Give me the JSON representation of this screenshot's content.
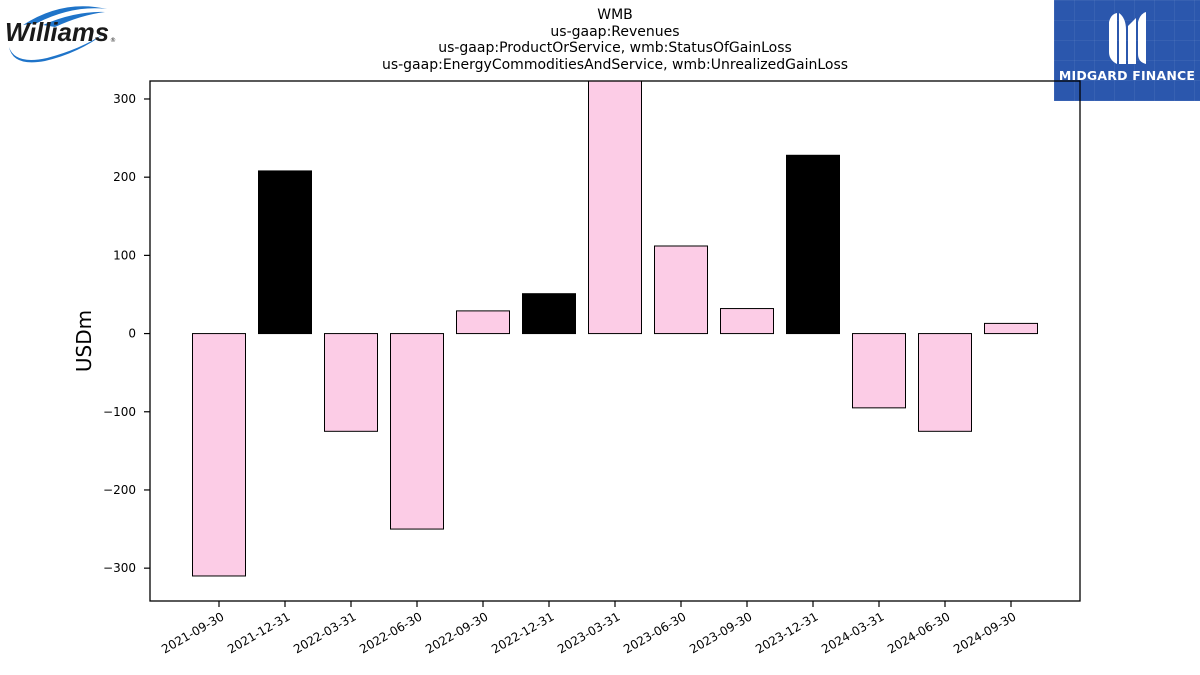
{
  "header": {
    "title_lines": [
      "WMB",
      "us-gaap:Revenues",
      "us-gaap:ProductOrService, wmb:StatusOfGainLoss",
      "us-gaap:EnergyCommoditiesAndService, wmb:UnrealizedGainLoss"
    ]
  },
  "logos": {
    "left": {
      "text": "Williams"
    },
    "right": {
      "text": "MIDGARD FINANCE"
    }
  },
  "colors": {
    "positive_bar": "#000000",
    "default_bar": "#fccce6",
    "bar_edge": "#000000",
    "right_logo_bg": "#2b57ad"
  },
  "chart_data": {
    "type": "bar",
    "categories": [
      "2021-09-30",
      "2021-12-31",
      "2022-03-31",
      "2022-06-30",
      "2022-09-30",
      "2022-12-31",
      "2023-03-31",
      "2023-06-30",
      "2023-09-30",
      "2023-12-31",
      "2024-03-31",
      "2024-06-30",
      "2024-09-30"
    ],
    "values": [
      -310,
      208,
      -125,
      -250,
      29,
      51,
      330,
      112,
      32,
      228,
      -95,
      -125,
      13
    ],
    "bar_colors": [
      "#fccce6",
      "#000000",
      "#fccce6",
      "#fccce6",
      "#fccce6",
      "#000000",
      "#fccce6",
      "#fccce6",
      "#fccce6",
      "#000000",
      "#fccce6",
      "#fccce6",
      "#fccce6"
    ],
    "xlabel": "",
    "ylabel": "USDm",
    "ylim": [
      -342,
      323
    ],
    "yticks": [
      300,
      200,
      100,
      0,
      -100,
      -200,
      -300
    ],
    "ytick_labels": [
      "300",
      "200",
      "100",
      "0",
      "−100",
      "−200",
      "−300"
    ],
    "grid": false,
    "legend": false
  }
}
